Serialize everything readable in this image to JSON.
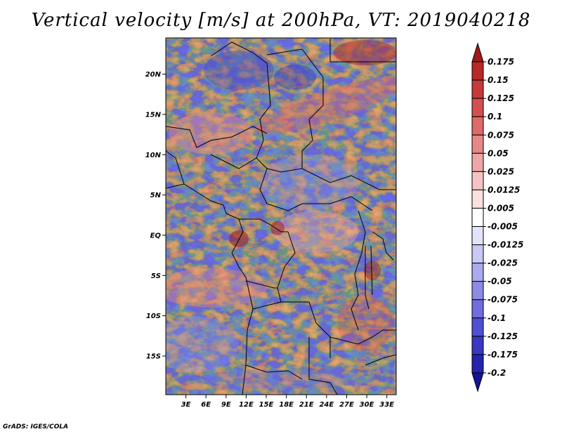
{
  "title": "Vertical velocity [m/s] at 200hPa, VT: 2019040218",
  "credit": "GrADS: IGES/COLA",
  "map": {
    "lat_labels": [
      "20N",
      "15N",
      "10N",
      "5N",
      "EQ",
      "5S",
      "10S",
      "15S"
    ],
    "lat_values": [
      20,
      15,
      10,
      5,
      0,
      -5,
      -10,
      -15
    ],
    "lon_labels": [
      "3E",
      "6E",
      "9E",
      "12E",
      "15E",
      "18E",
      "21E",
      "24E",
      "27E",
      "30E",
      "33E"
    ],
    "lon_values": [
      3,
      6,
      9,
      12,
      15,
      18,
      21,
      24,
      27,
      30,
      33
    ],
    "lat_range": [
      -19.8,
      24.5
    ],
    "lon_range": [
      0,
      34.4
    ]
  },
  "colorbar": {
    "labels": [
      "0.175",
      "0.15",
      "0.125",
      "0.1",
      "0.075",
      "0.05",
      "0.025",
      "0.0125",
      "0.005",
      "-0.005",
      "-0.0125",
      "-0.025",
      "-0.05",
      "-0.075",
      "-0.1",
      "-0.125",
      "-0.175",
      "-0.2"
    ],
    "colors": [
      "#a01a1a",
      "#b82828",
      "#c83a3a",
      "#d45050",
      "#de6a6a",
      "#e68888",
      "#eea6a6",
      "#f4c4c4",
      "#fae0e0",
      "#ffffff",
      "#e2e2fa",
      "#c8c8f4",
      "#aaaaee",
      "#8c8ce6",
      "#6e6ede",
      "#5050d2",
      "#3838c2",
      "#2424ae",
      "#141496"
    ]
  }
}
